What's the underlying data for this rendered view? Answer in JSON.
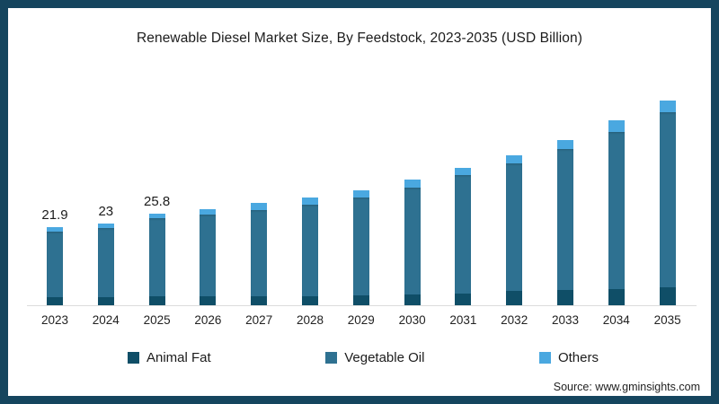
{
  "chart": {
    "title": "Renewable Diesel Market Size, By Feedstock, 2023-2035 (USD Billion)"
  },
  "legend": {
    "items": [
      {
        "label": "Animal Fat",
        "color": "#0f4e67"
      },
      {
        "label": "Vegetable Oil",
        "color": "#2e7191"
      },
      {
        "label": "Others",
        "color": "#4aa8e0"
      }
    ]
  },
  "footer": {
    "source": "Source: www.gminsights.com"
  },
  "frame": {
    "border_color": "#15455e"
  },
  "chart_data": {
    "type": "bar",
    "stacked": true,
    "title": "Renewable Diesel Market Size, By Feedstock, 2023-2035 (USD Billion)",
    "categories": [
      "2023",
      "2024",
      "2025",
      "2026",
      "2027",
      "2028",
      "2029",
      "2030",
      "2031",
      "2032",
      "2033",
      "2034",
      "2035"
    ],
    "series": [
      {
        "name": "Animal Fat",
        "color": "#0f4e67",
        "values": [
          2.2,
          2.3,
          2.4,
          2.4,
          2.5,
          2.6,
          2.8,
          2.9,
          3.3,
          4.0,
          4.2,
          4.6,
          5.0
        ]
      },
      {
        "name": "Vegetable Oil",
        "color": "#2e7191",
        "values": [
          18.4,
          19.4,
          21.9,
          23.0,
          24.3,
          25.6,
          27.5,
          30.2,
          33.2,
          35.8,
          39.6,
          44.0,
          49.2
        ]
      },
      {
        "name": "Others",
        "color": "#4aa8e0",
        "values": [
          1.3,
          1.3,
          1.5,
          1.5,
          1.8,
          1.9,
          2.0,
          2.1,
          2.1,
          2.3,
          2.5,
          3.2,
          3.3
        ]
      }
    ],
    "totals": [
      21.9,
      23,
      25.8,
      26.9,
      28.6,
      30.1,
      32.3,
      35.2,
      38.6,
      42.1,
      46.3,
      51.8,
      57.5
    ],
    "bar_labels": [
      "21.9",
      "23",
      "25.8",
      "",
      "",
      "",
      "",
      "",
      "",
      "",
      "",
      "",
      ""
    ],
    "xlabel": "",
    "ylabel": "",
    "ylim": [
      0,
      72
    ],
    "grid": false,
    "legend_position": "bottom"
  }
}
